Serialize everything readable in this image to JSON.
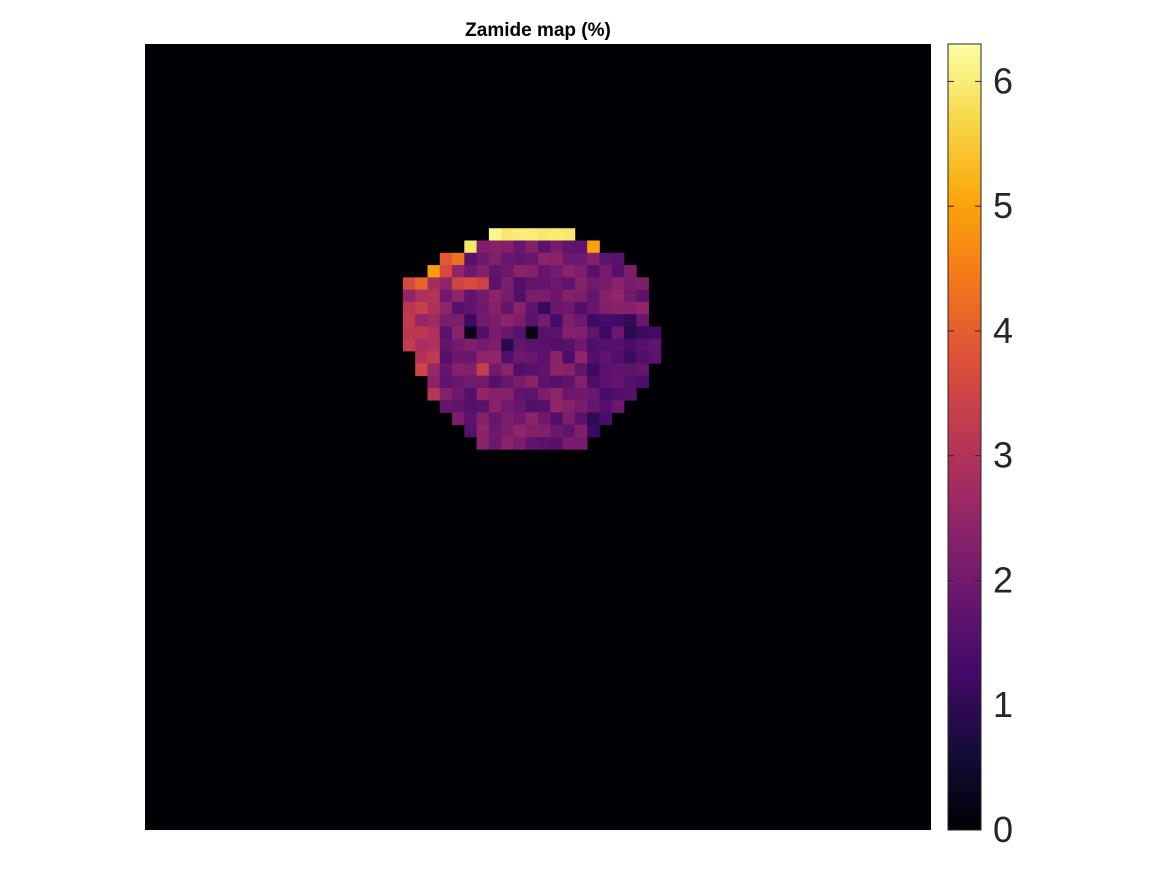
{
  "chart_data": {
    "type": "heatmap",
    "title": "Zamide map (%)",
    "colormap": "inferno",
    "clim": [
      0,
      6.3
    ],
    "background_value": 0,
    "colorbar": {
      "position": "right",
      "ticks": [
        0,
        1,
        2,
        3,
        4,
        5,
        6
      ],
      "tick_labels": [
        "0",
        "1",
        "2",
        "3",
        "4",
        "5",
        "6"
      ]
    },
    "grid_size": [
      64,
      64
    ],
    "region_row_start": 15,
    "region_col_start": 21,
    "region_rows": [
      "....................",
      "...JOOOOOOOOOOOO....",
      "..HC................",
      "..B..............C..",
      ".A...............A..",
      "...............A....",
      "AA.........B....A...",
      "A..................D",
      "A...............A..D",
      "A...............A..D",
      "................A...",
      "....A...............",
      ".......A............",
      "...................."
    ]
  }
}
